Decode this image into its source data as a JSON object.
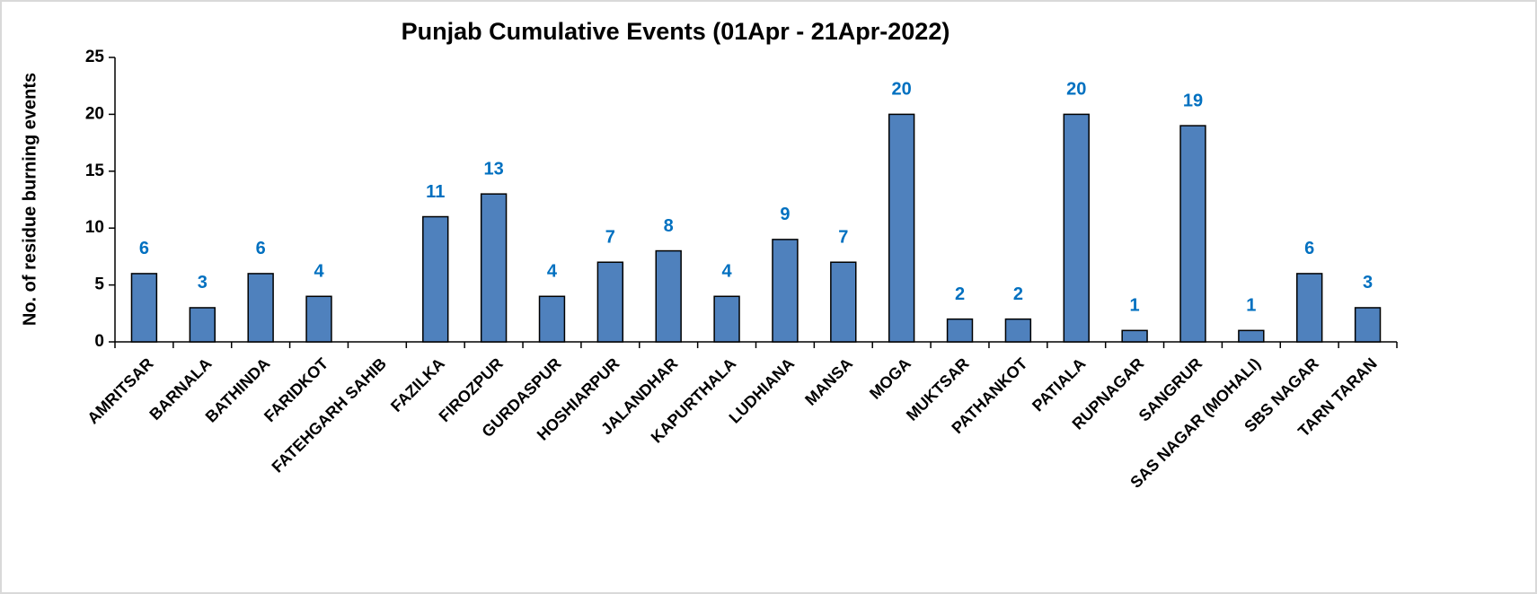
{
  "chart_data": {
    "type": "bar",
    "title": "Punjab Cumulative Events (01Apr - 21Apr-2022)",
    "y_label": "No. of residue burning events",
    "categories": [
      "AMRITSAR",
      "BARNALA",
      "BATHINDA",
      "FARIDKOT",
      "FATEHGARH SAHIB",
      "FAZILKA",
      "FIROZPUR",
      "GURDASPUR",
      "HOSHIARPUR",
      "JALANDHAR",
      "KAPURTHALA",
      "LUDHIANA",
      "MANSA",
      "MOGA",
      "MUKTSAR",
      "PATHANKOT",
      "PATIALA",
      "RUPNAGAR",
      "SANGRUR",
      "SAS NAGAR (MOHALI)",
      "SBS NAGAR",
      "TARN TARAN"
    ],
    "values": [
      6,
      3,
      6,
      4,
      0,
      11,
      13,
      4,
      7,
      8,
      4,
      9,
      7,
      20,
      2,
      2,
      20,
      1,
      19,
      1,
      6,
      3
    ],
    "value_labels": [
      "6",
      "3",
      "6",
      "4",
      null,
      "11",
      "13",
      "4",
      "7",
      "8",
      "4",
      "9",
      "7",
      "20",
      "2",
      "2",
      "20",
      "1",
      "19",
      "1",
      "6",
      "3"
    ],
    "color": "#4f81bd",
    "label_color": "#0070c0",
    "ylim": [
      0,
      25
    ],
    "yticks": [
      0,
      5,
      10,
      15,
      20,
      25
    ]
  }
}
